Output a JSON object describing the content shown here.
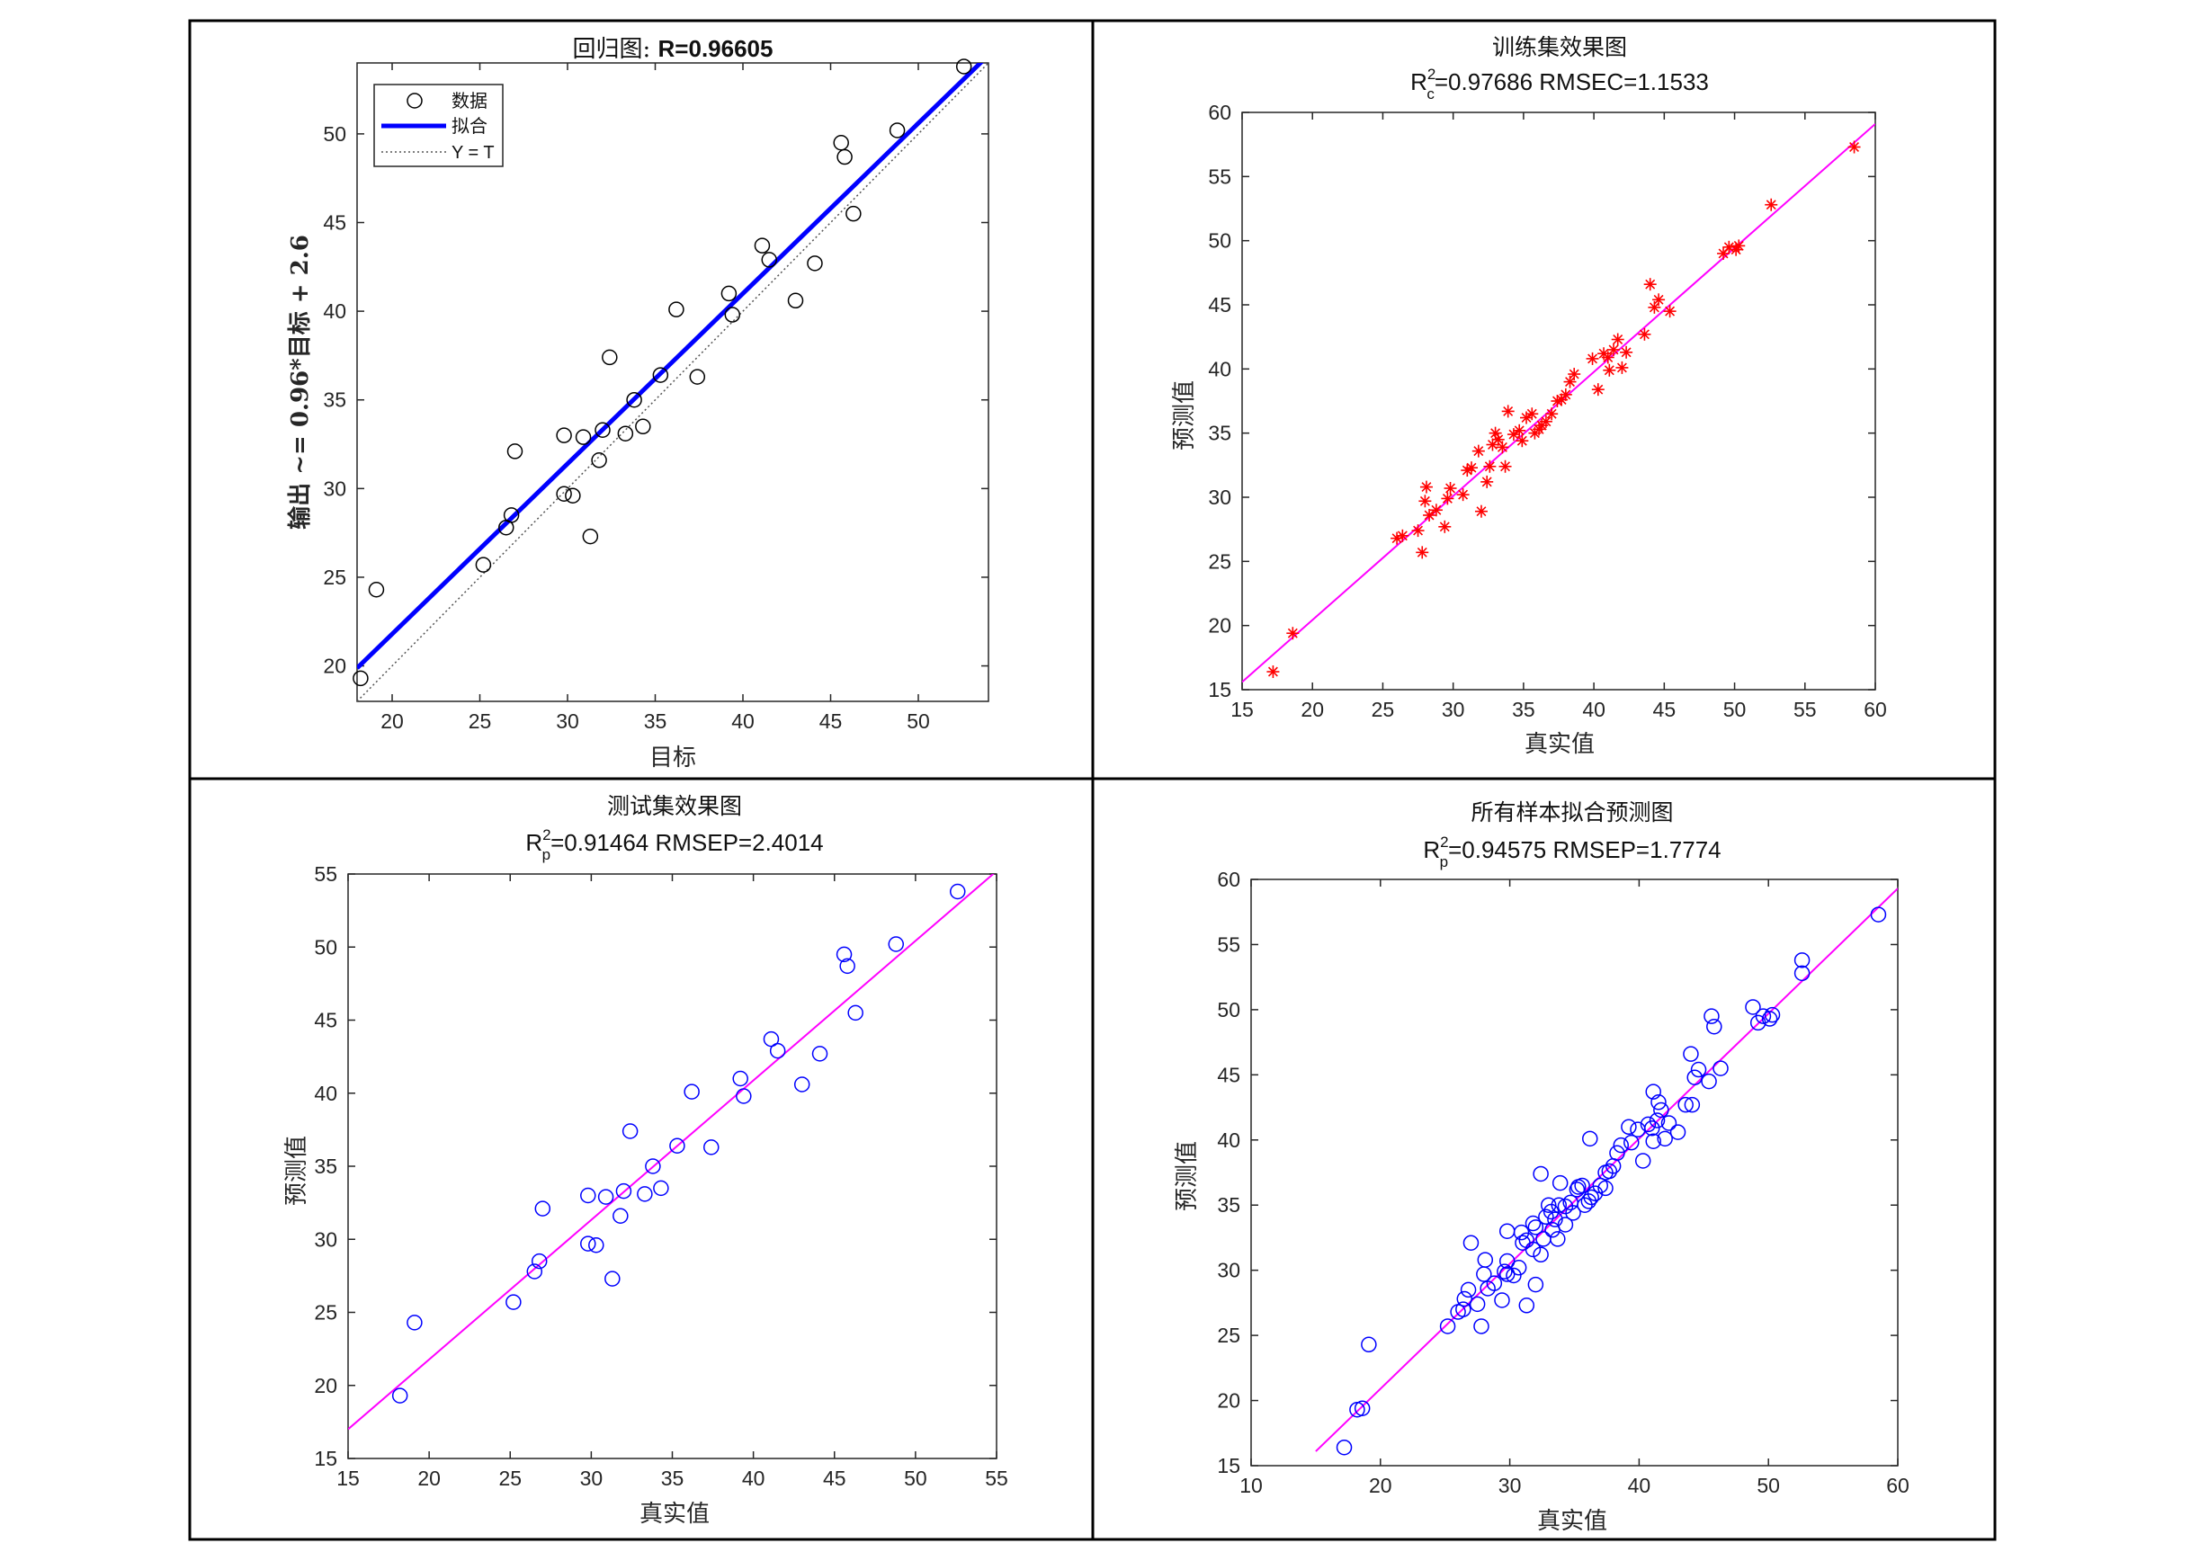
{
  "chart_data": [
    {
      "id": "regression",
      "type": "scatter",
      "title_prefix": "回归图: ",
      "title_value": "R=0.96605",
      "xlabel": "目标",
      "ylabel": "输出 ~= 0.96*目标 + 2.6",
      "xlim": [
        18,
        54
      ],
      "ylim": [
        18,
        54
      ],
      "xticks": [
        20,
        25,
        30,
        35,
        40,
        45,
        50
      ],
      "yticks": [
        20,
        25,
        30,
        35,
        40,
        45,
        50
      ],
      "legend": {
        "position": "top-left",
        "labels": [
          "数据",
          "拟合",
          "Y = T"
        ]
      },
      "fit": {
        "slope": 0.96,
        "intercept": 2.6,
        "color": "#0000ff"
      },
      "identity_line_color": "#555555",
      "marker": "circle",
      "marker_color": "#000000",
      "points": [
        [
          18.2,
          19.3
        ],
        [
          19.1,
          24.3
        ],
        [
          25.2,
          25.7
        ],
        [
          26.5,
          27.8
        ],
        [
          26.8,
          28.5
        ],
        [
          27.0,
          32.1
        ],
        [
          29.8,
          33.0
        ],
        [
          29.8,
          29.7
        ],
        [
          30.3,
          29.6
        ],
        [
          30.9,
          32.9
        ],
        [
          31.3,
          27.3
        ],
        [
          31.8,
          31.6
        ],
        [
          32.0,
          33.3
        ],
        [
          32.4,
          37.4
        ],
        [
          33.3,
          33.1
        ],
        [
          33.8,
          35.0
        ],
        [
          34.3,
          33.5
        ],
        [
          35.3,
          36.4
        ],
        [
          36.2,
          40.1
        ],
        [
          37.4,
          36.3
        ],
        [
          39.2,
          41.0
        ],
        [
          39.4,
          39.8
        ],
        [
          41.1,
          43.7
        ],
        [
          41.5,
          42.9
        ],
        [
          43.0,
          40.6
        ],
        [
          44.1,
          42.7
        ],
        [
          45.6,
          49.5
        ],
        [
          45.8,
          48.7
        ],
        [
          46.3,
          45.5
        ],
        [
          48.8,
          50.2
        ],
        [
          52.6,
          53.8
        ]
      ]
    },
    {
      "id": "train",
      "type": "scatter",
      "title": "训练集效果图",
      "subtitle_prefix": "R",
      "subtitle_sup": "2",
      "subtitle_sub": "c",
      "subtitle_rest": "=0.97686  RMSEC=1.1533",
      "xlabel": "真实值",
      "ylabel": "预测值",
      "xlim": [
        15,
        60
      ],
      "ylim": [
        15,
        60
      ],
      "xticks": [
        15,
        20,
        25,
        30,
        35,
        40,
        45,
        50,
        55,
        60
      ],
      "yticks": [
        15,
        20,
        25,
        30,
        35,
        40,
        45,
        50,
        55,
        60
      ],
      "fit": {
        "x": [
          15,
          60
        ],
        "y": [
          15.6,
          59.1
        ],
        "color": "#ff00ff"
      },
      "marker": "asterisk",
      "marker_color": "#ff0000",
      "points": [
        [
          17.2,
          16.4
        ],
        [
          18.6,
          19.4
        ],
        [
          26.0,
          26.8
        ],
        [
          26.4,
          27.0
        ],
        [
          27.5,
          27.4
        ],
        [
          27.8,
          25.7
        ],
        [
          28.0,
          29.7
        ],
        [
          28.1,
          30.8
        ],
        [
          28.3,
          28.6
        ],
        [
          28.8,
          29.0
        ],
        [
          29.4,
          27.7
        ],
        [
          29.6,
          29.9
        ],
        [
          29.8,
          30.7
        ],
        [
          30.7,
          30.2
        ],
        [
          31.0,
          32.1
        ],
        [
          31.3,
          32.3
        ],
        [
          31.8,
          33.6
        ],
        [
          32.0,
          28.9
        ],
        [
          32.4,
          31.2
        ],
        [
          32.6,
          32.4
        ],
        [
          32.8,
          34.1
        ],
        [
          33.0,
          35.0
        ],
        [
          33.2,
          34.5
        ],
        [
          33.5,
          33.9
        ],
        [
          33.7,
          32.4
        ],
        [
          33.9,
          36.7
        ],
        [
          34.3,
          34.9
        ],
        [
          34.7,
          35.2
        ],
        [
          34.9,
          34.4
        ],
        [
          35.2,
          36.2
        ],
        [
          35.6,
          36.5
        ],
        [
          35.8,
          35.0
        ],
        [
          36.1,
          35.3
        ],
        [
          36.3,
          35.6
        ],
        [
          36.6,
          35.9
        ],
        [
          37.0,
          36.5
        ],
        [
          37.4,
          37.5
        ],
        [
          37.7,
          37.6
        ],
        [
          38.0,
          38.0
        ],
        [
          38.3,
          39.0
        ],
        [
          38.6,
          39.6
        ],
        [
          39.9,
          40.8
        ],
        [
          40.3,
          38.4
        ],
        [
          40.7,
          41.2
        ],
        [
          41.0,
          40.9
        ],
        [
          41.1,
          39.9
        ],
        [
          41.4,
          41.5
        ],
        [
          41.7,
          42.3
        ],
        [
          42.0,
          40.1
        ],
        [
          42.3,
          41.3
        ],
        [
          43.6,
          42.7
        ],
        [
          44.0,
          46.6
        ],
        [
          44.3,
          44.8
        ],
        [
          44.6,
          45.4
        ],
        [
          45.4,
          44.5
        ],
        [
          49.2,
          49.0
        ],
        [
          49.6,
          49.5
        ],
        [
          50.1,
          49.3
        ],
        [
          50.3,
          49.6
        ],
        [
          52.6,
          52.8
        ],
        [
          58.5,
          57.3
        ]
      ]
    },
    {
      "id": "test",
      "type": "scatter",
      "title": "测试集效果图",
      "subtitle_prefix": "R",
      "subtitle_sup": "2",
      "subtitle_sub": "p",
      "subtitle_rest": "=0.91464  RMSEP=2.4014",
      "xlabel": "真实值",
      "ylabel": "预测值",
      "xlim": [
        15,
        55
      ],
      "ylim": [
        15,
        55
      ],
      "xticks": [
        15,
        20,
        25,
        30,
        35,
        40,
        45,
        50,
        55
      ],
      "yticks": [
        15,
        20,
        25,
        30,
        35,
        40,
        45,
        50,
        55
      ],
      "fit": {
        "x": [
          15,
          55
        ],
        "y": [
          17.0,
          55.2
        ],
        "color": "#ff00ff"
      },
      "marker": "circle",
      "marker_color": "#0000ff",
      "points": [
        [
          18.2,
          19.3
        ],
        [
          19.1,
          24.3
        ],
        [
          25.2,
          25.7
        ],
        [
          26.5,
          27.8
        ],
        [
          26.8,
          28.5
        ],
        [
          27.0,
          32.1
        ],
        [
          29.8,
          33.0
        ],
        [
          29.8,
          29.7
        ],
        [
          30.3,
          29.6
        ],
        [
          30.9,
          32.9
        ],
        [
          31.3,
          27.3
        ],
        [
          31.8,
          31.6
        ],
        [
          32.0,
          33.3
        ],
        [
          32.4,
          37.4
        ],
        [
          33.3,
          33.1
        ],
        [
          33.8,
          35.0
        ],
        [
          34.3,
          33.5
        ],
        [
          35.3,
          36.4
        ],
        [
          36.2,
          40.1
        ],
        [
          37.4,
          36.3
        ],
        [
          39.2,
          41.0
        ],
        [
          39.4,
          39.8
        ],
        [
          41.1,
          43.7
        ],
        [
          41.5,
          42.9
        ],
        [
          43.0,
          40.6
        ],
        [
          44.1,
          42.7
        ],
        [
          45.6,
          49.5
        ],
        [
          45.8,
          48.7
        ],
        [
          46.3,
          45.5
        ],
        [
          48.8,
          50.2
        ],
        [
          52.6,
          53.8
        ]
      ]
    },
    {
      "id": "all",
      "type": "scatter",
      "title": "所有样本拟合预测图",
      "subtitle_prefix": "R",
      "subtitle_sup": "2",
      "subtitle_sub": "p",
      "subtitle_rest": "=0.94575  RMSEP=1.7774",
      "xlabel": "真实值",
      "ylabel": "预测值",
      "xlim": [
        10,
        60
      ],
      "ylim": [
        15,
        60
      ],
      "xticks": [
        10,
        20,
        30,
        40,
        50,
        60
      ],
      "yticks": [
        15,
        20,
        25,
        30,
        35,
        40,
        45,
        50,
        55,
        60
      ],
      "fit": {
        "x": [
          15,
          60
        ],
        "y": [
          16.1,
          59.3
        ],
        "color": "#ff00ff"
      },
      "marker": "circle",
      "marker_color": "#0000ff",
      "points": [
        [
          17.2,
          16.4
        ],
        [
          18.6,
          19.4
        ],
        [
          26.0,
          26.8
        ],
        [
          26.4,
          27.0
        ],
        [
          27.5,
          27.4
        ],
        [
          27.8,
          25.7
        ],
        [
          28.0,
          29.7
        ],
        [
          28.1,
          30.8
        ],
        [
          28.3,
          28.6
        ],
        [
          28.8,
          29.0
        ],
        [
          29.4,
          27.7
        ],
        [
          29.6,
          29.9
        ],
        [
          29.8,
          30.7
        ],
        [
          30.7,
          30.2
        ],
        [
          31.0,
          32.1
        ],
        [
          31.3,
          32.3
        ],
        [
          31.8,
          33.6
        ],
        [
          32.0,
          28.9
        ],
        [
          32.4,
          31.2
        ],
        [
          32.6,
          32.4
        ],
        [
          32.8,
          34.1
        ],
        [
          33.0,
          35.0
        ],
        [
          33.2,
          34.5
        ],
        [
          33.5,
          33.9
        ],
        [
          33.7,
          32.4
        ],
        [
          33.9,
          36.7
        ],
        [
          34.3,
          34.9
        ],
        [
          34.7,
          35.2
        ],
        [
          34.9,
          34.4
        ],
        [
          35.2,
          36.2
        ],
        [
          35.6,
          36.5
        ],
        [
          35.8,
          35.0
        ],
        [
          36.1,
          35.3
        ],
        [
          36.3,
          35.6
        ],
        [
          36.6,
          35.9
        ],
        [
          37.0,
          36.5
        ],
        [
          37.4,
          37.5
        ],
        [
          37.7,
          37.6
        ],
        [
          38.0,
          38.0
        ],
        [
          38.3,
          39.0
        ],
        [
          38.6,
          39.6
        ],
        [
          39.9,
          40.8
        ],
        [
          40.3,
          38.4
        ],
        [
          40.7,
          41.2
        ],
        [
          41.0,
          40.9
        ],
        [
          41.1,
          39.9
        ],
        [
          41.4,
          41.5
        ],
        [
          41.7,
          42.3
        ],
        [
          42.0,
          40.1
        ],
        [
          42.3,
          41.3
        ],
        [
          43.6,
          42.7
        ],
        [
          44.0,
          46.6
        ],
        [
          44.3,
          44.8
        ],
        [
          44.6,
          45.4
        ],
        [
          45.4,
          44.5
        ],
        [
          49.2,
          49.0
        ],
        [
          49.6,
          49.5
        ],
        [
          50.1,
          49.3
        ],
        [
          50.3,
          49.6
        ],
        [
          52.6,
          52.8
        ],
        [
          58.5,
          57.3
        ],
        [
          18.2,
          19.3
        ],
        [
          19.1,
          24.3
        ],
        [
          25.2,
          25.7
        ],
        [
          26.5,
          27.8
        ],
        [
          26.8,
          28.5
        ],
        [
          27.0,
          32.1
        ],
        [
          29.8,
          33.0
        ],
        [
          29.8,
          29.7
        ],
        [
          30.3,
          29.6
        ],
        [
          30.9,
          32.9
        ],
        [
          31.3,
          27.3
        ],
        [
          31.8,
          31.6
        ],
        [
          32.0,
          33.3
        ],
        [
          32.4,
          37.4
        ],
        [
          33.3,
          33.1
        ],
        [
          33.8,
          35.0
        ],
        [
          34.3,
          33.5
        ],
        [
          35.3,
          36.4
        ],
        [
          36.2,
          40.1
        ],
        [
          37.4,
          36.3
        ],
        [
          39.2,
          41.0
        ],
        [
          39.4,
          39.8
        ],
        [
          41.1,
          43.7
        ],
        [
          41.5,
          42.9
        ],
        [
          43.0,
          40.6
        ],
        [
          44.1,
          42.7
        ],
        [
          45.6,
          49.5
        ],
        [
          45.8,
          48.7
        ],
        [
          46.3,
          45.5
        ],
        [
          48.8,
          50.2
        ],
        [
          52.6,
          53.8
        ]
      ]
    }
  ]
}
